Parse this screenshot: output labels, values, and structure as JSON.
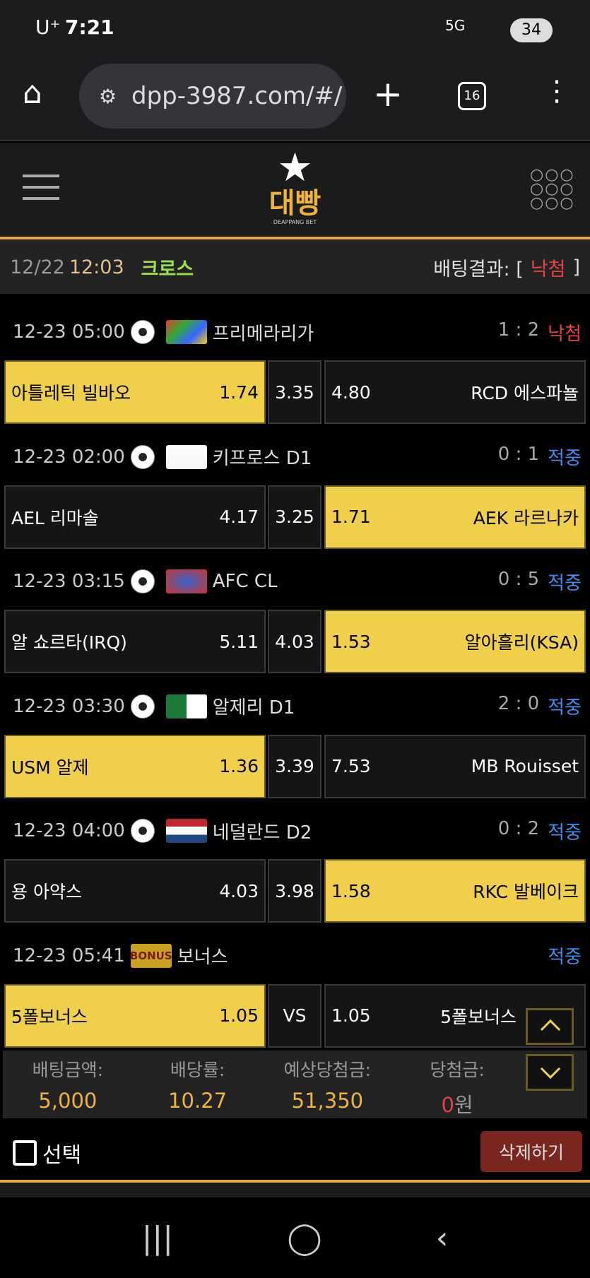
{
  "status_bar": {
    "carrier": "U⁺",
    "time": "7:21",
    "battery": "34",
    "network": "5G"
  },
  "browser": {
    "url": "dpp-3987.com/#/",
    "tab_count": "16"
  },
  "site": {
    "logo_text": "대빵",
    "logo_sub": "DEAPPANG BET"
  },
  "bet_header": {
    "date": "12/22",
    "time": "12:03",
    "type": "크로스",
    "result_label": "배팅결과: [",
    "result": "낙첨",
    "result_close": "]"
  },
  "matches": [
    {
      "datetime": "12-23 05:00",
      "league": "프리메라리가",
      "league_icon": "laliga-logo",
      "score": "1 : 2",
      "status": "낙첨",
      "status_color": "#e84040",
      "home": "아틀레틱 빌바오",
      "home_odds": "1.74",
      "draw": "3.35",
      "away_odds": "4.80",
      "away": "RCD 에스파뇰",
      "selected": "home"
    },
    {
      "datetime": "12-23 02:00",
      "league": "키프로스 D1",
      "league_icon": "cyprus-flag",
      "score": "0 : 1",
      "status": "적중",
      "status_color": "#3d8ef0",
      "home": "AEL 리마솔",
      "home_odds": "4.17",
      "draw": "3.25",
      "away_odds": "1.71",
      "away": "AEK 라르나카",
      "selected": "away"
    },
    {
      "datetime": "12-23 03:15",
      "league": "AFC CL",
      "league_icon": "afc-champions-league-logo",
      "score": "0 : 5",
      "status": "적중",
      "status_color": "#3d8ef0",
      "home": "알 쇼르타(IRQ)",
      "home_odds": "5.11",
      "draw": "4.03",
      "away_odds": "1.53",
      "away": "알아흘리(KSA)",
      "selected": "away"
    },
    {
      "datetime": "12-23 03:30",
      "league": "알제리 D1",
      "league_icon": "algeria-flag",
      "score": "2 : 0",
      "status": "적중",
      "status_color": "#3d8ef0",
      "home": "USM 알제",
      "home_odds": "1.36",
      "draw": "3.39",
      "away_odds": "7.53",
      "away": "MB Rouisset",
      "selected": "home"
    },
    {
      "datetime": "12-23 04:00",
      "league": "네덜란드 D2",
      "league_icon": "netherlands-flag",
      "score": "0 : 2",
      "status": "적중",
      "status_color": "#3d8ef0",
      "home": "용 아약스",
      "home_odds": "4.03",
      "draw": "3.98",
      "away_odds": "1.58",
      "away": "RKC 발베이크",
      "selected": "away"
    },
    {
      "datetime": "12-23 05:41",
      "league": "보너스",
      "league_icon": "bonus-badge",
      "badge": "BONUS",
      "score": "",
      "status": "적중",
      "status_color": "#3d8ef0",
      "home": "5폴보너스",
      "home_odds": "1.05",
      "draw": "VS",
      "away_odds": "1.05",
      "away": "5폴보너스",
      "selected": "home"
    }
  ],
  "summary": [
    {
      "label": "배팅금액:",
      "value": "5,000"
    },
    {
      "label": "배당률:",
      "value": "10.27"
    },
    {
      "label": "예상당첨금:",
      "value": "51,350"
    },
    {
      "label": "당첨금:",
      "value": "0",
      "unit": "원"
    }
  ],
  "actions": {
    "select_label": "선택",
    "delete_label": "삭제하기"
  },
  "colors": {
    "accent": "#f0cf4a",
    "orange": "#e8a93a",
    "win": "#3d8ef0",
    "lose": "#e84040",
    "delete_bg": "#7a2620"
  }
}
